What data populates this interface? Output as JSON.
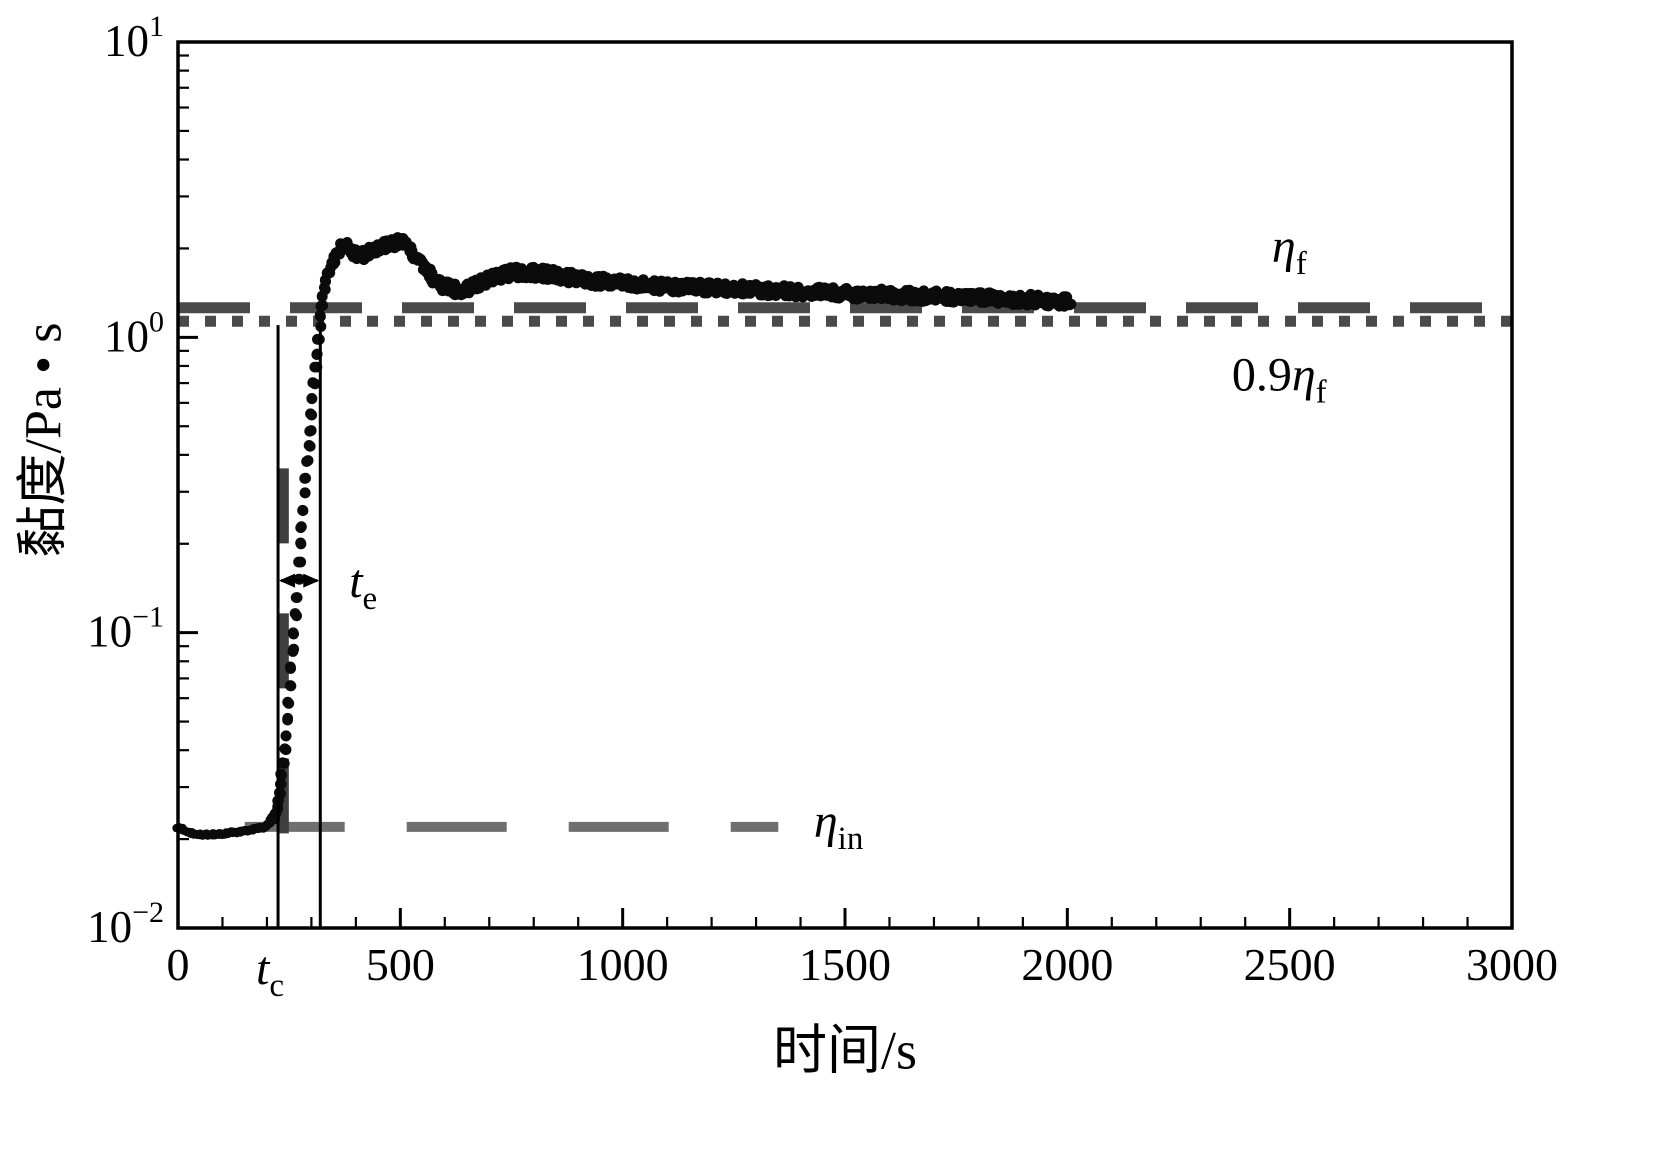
{
  "figure": {
    "background": "#ffffff",
    "axis_color": "#000000",
    "data_color": "#0b0b0b"
  },
  "chart_data": {
    "type": "scatter",
    "title": "",
    "xlabel": "时间/s",
    "ylabel": "黏度/Pa • s",
    "x_range": [
      0,
      3000
    ],
    "y_scale": "log",
    "y_range_exponents": [
      -2,
      1
    ],
    "x_ticks": [
      0,
      500,
      1000,
      1500,
      2000,
      2500,
      3000
    ],
    "x_tick_labels": [
      "0",
      "500",
      "1000",
      "1500",
      "2000",
      "2500",
      "3000"
    ],
    "x_minor_step": 100,
    "y_tick_exponents": [
      -2,
      -1,
      0,
      1
    ],
    "grid": false,
    "series": {
      "name": "viscosity-vs-time",
      "marker": "dot",
      "color": "#0b0b0b",
      "points": [
        [
          0,
          0.022
        ],
        [
          15,
          0.0213
        ],
        [
          30,
          0.0209
        ],
        [
          50,
          0.0207
        ],
        [
          70,
          0.0207
        ],
        [
          90,
          0.0208
        ],
        [
          110,
          0.0209
        ],
        [
          130,
          0.0211
        ],
        [
          150,
          0.0213
        ],
        [
          170,
          0.0216
        ],
        [
          190,
          0.0219
        ],
        [
          205,
          0.0224
        ],
        [
          215,
          0.0236
        ],
        [
          222,
          0.0255
        ],
        [
          228,
          0.0285
        ],
        [
          234,
          0.033
        ],
        [
          240,
          0.04
        ],
        [
          246,
          0.051
        ],
        [
          252,
          0.066
        ],
        [
          258,
          0.087
        ],
        [
          264,
          0.115
        ],
        [
          270,
          0.152
        ],
        [
          276,
          0.2
        ],
        [
          282,
          0.26
        ],
        [
          288,
          0.335
        ],
        [
          294,
          0.43
        ],
        [
          300,
          0.55
        ],
        [
          306,
          0.7
        ],
        [
          312,
          0.88
        ],
        [
          318,
          1.08
        ],
        [
          324,
          1.28
        ],
        [
          330,
          1.46
        ],
        [
          338,
          1.65
        ],
        [
          348,
          1.82
        ],
        [
          358,
          1.94
        ],
        [
          368,
          2.01
        ],
        [
          378,
          2.03
        ],
        [
          388,
          1.99
        ],
        [
          398,
          1.93
        ],
        [
          408,
          1.9
        ],
        [
          418,
          1.91
        ],
        [
          428,
          1.94
        ],
        [
          440,
          1.97
        ],
        [
          452,
          2.01
        ],
        [
          464,
          2.04
        ],
        [
          476,
          2.06
        ],
        [
          488,
          2.08
        ],
        [
          500,
          2.1
        ],
        [
          512,
          2.06
        ],
        [
          524,
          1.98
        ],
        [
          536,
          1.88
        ],
        [
          548,
          1.77
        ],
        [
          560,
          1.67
        ],
        [
          572,
          1.6
        ],
        [
          584,
          1.54
        ],
        [
          596,
          1.5
        ],
        [
          610,
          1.47
        ],
        [
          625,
          1.45
        ],
        [
          640,
          1.45
        ],
        [
          655,
          1.47
        ],
        [
          672,
          1.51
        ],
        [
          690,
          1.56
        ],
        [
          710,
          1.6
        ],
        [
          730,
          1.63
        ],
        [
          750,
          1.65
        ],
        [
          770,
          1.66
        ],
        [
          790,
          1.66
        ],
        [
          810,
          1.65
        ],
        [
          830,
          1.64
        ],
        [
          850,
          1.62
        ],
        [
          875,
          1.6
        ],
        [
          900,
          1.58
        ],
        [
          930,
          1.56
        ],
        [
          960,
          1.54
        ],
        [
          1000,
          1.52
        ],
        [
          1050,
          1.5
        ],
        [
          1100,
          1.49
        ],
        [
          1150,
          1.48
        ],
        [
          1200,
          1.47
        ],
        [
          1250,
          1.46
        ],
        [
          1300,
          1.45
        ],
        [
          1350,
          1.44
        ],
        [
          1400,
          1.43
        ],
        [
          1450,
          1.42
        ],
        [
          1500,
          1.41
        ],
        [
          1560,
          1.4
        ],
        [
          1620,
          1.39
        ],
        [
          1680,
          1.38
        ],
        [
          1740,
          1.37
        ],
        [
          1800,
          1.36
        ],
        [
          1860,
          1.35
        ],
        [
          1920,
          1.34
        ],
        [
          1970,
          1.33
        ],
        [
          2010,
          1.32
        ]
      ]
    },
    "reference_lines": [
      {
        "id": "eta-f-line",
        "value": 1.26,
        "x_start": 0,
        "x_end": 3000,
        "style": "long-dash",
        "dash": [
          72,
          40
        ],
        "width": 11,
        "color": "#4a4a4a"
      },
      {
        "id": "eta-09f-line",
        "value": 1.134,
        "x_start": 0,
        "x_end": 3000,
        "style": "dotted",
        "dash": [
          11,
          16
        ],
        "width": 11,
        "color": "#4a4a4a"
      },
      {
        "id": "eta-in-line",
        "value": 0.022,
        "x_start": 150,
        "x_end": 1350,
        "style": "long-dash",
        "dash": [
          100,
          62
        ],
        "width": 10,
        "color": "#6f6f6f"
      }
    ],
    "gel_line": {
      "x": 238,
      "y_top": 0.36,
      "y_bottom": 0.0128,
      "dash": [
        75,
        70
      ],
      "width": 10,
      "color": "#3f3f3f"
    },
    "event_lines": {
      "t_c": 225,
      "t_e_end": 320,
      "y_top": 1.1,
      "arrow_y": 0.15
    },
    "annotations": {
      "eta_f": {
        "prefix": "",
        "base": "η",
        "sub": "f",
        "x": 2460,
        "y": 1.8
      },
      "eta_09f": {
        "prefix": "0.9",
        "base": "η",
        "sub": "f",
        "x": 2370,
        "y": 0.66
      },
      "eta_in": {
        "prefix": "",
        "base": "η",
        "sub": "in",
        "x": 1430,
        "y": 0.0203
      },
      "t_e": {
        "prefix": "",
        "base": "t",
        "sub": "e",
        "x": 385,
        "y": 0.132
      },
      "t_c": {
        "prefix": "",
        "base": "t",
        "sub": "c",
        "x": 207,
        "below_axis": true
      }
    }
  }
}
